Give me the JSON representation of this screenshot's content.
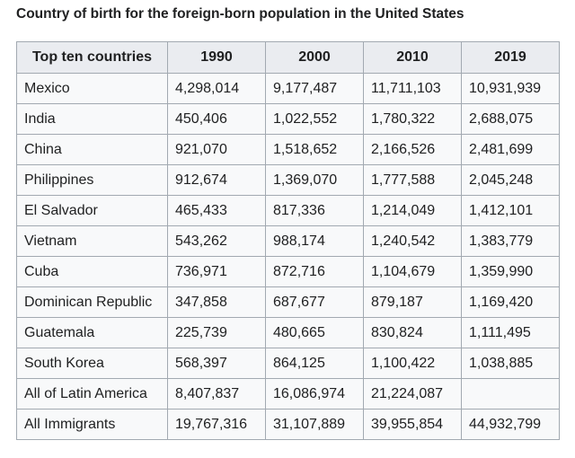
{
  "title": "Country of birth for the foreign-born population in the United States",
  "table": {
    "header": [
      "Top ten countries",
      "1990",
      "2000",
      "2010",
      "2019"
    ],
    "rows": [
      [
        "Mexico",
        "4,298,014",
        "9,177,487",
        "11,711,103",
        "10,931,939"
      ],
      [
        "India",
        "450,406",
        "1,022,552",
        "1,780,322",
        "2,688,075"
      ],
      [
        "China",
        "921,070",
        "1,518,652",
        "2,166,526",
        "2,481,699"
      ],
      [
        "Philippines",
        "912,674",
        "1,369,070",
        "1,777,588",
        "2,045,248"
      ],
      [
        "El Salvador",
        "465,433",
        "817,336",
        "1,214,049",
        "1,412,101"
      ],
      [
        "Vietnam",
        "543,262",
        "988,174",
        "1,240,542",
        "1,383,779"
      ],
      [
        "Cuba",
        "736,971",
        "872,716",
        "1,104,679",
        "1,359,990"
      ],
      [
        "Dominican Republic",
        "347,858",
        "687,677",
        "879,187",
        "1,169,420"
      ],
      [
        "Guatemala",
        "225,739",
        "480,665",
        "830,824",
        "1,111,495"
      ],
      [
        "South Korea",
        "568,397",
        "864,125",
        "1,100,422",
        "1,038,885"
      ],
      [
        "All of Latin America",
        "8,407,837",
        "16,086,974",
        "21,224,087",
        null
      ],
      [
        "All Immigrants",
        "19,767,316",
        "31,107,889",
        "39,955,854",
        "44,932,799"
      ]
    ]
  }
}
